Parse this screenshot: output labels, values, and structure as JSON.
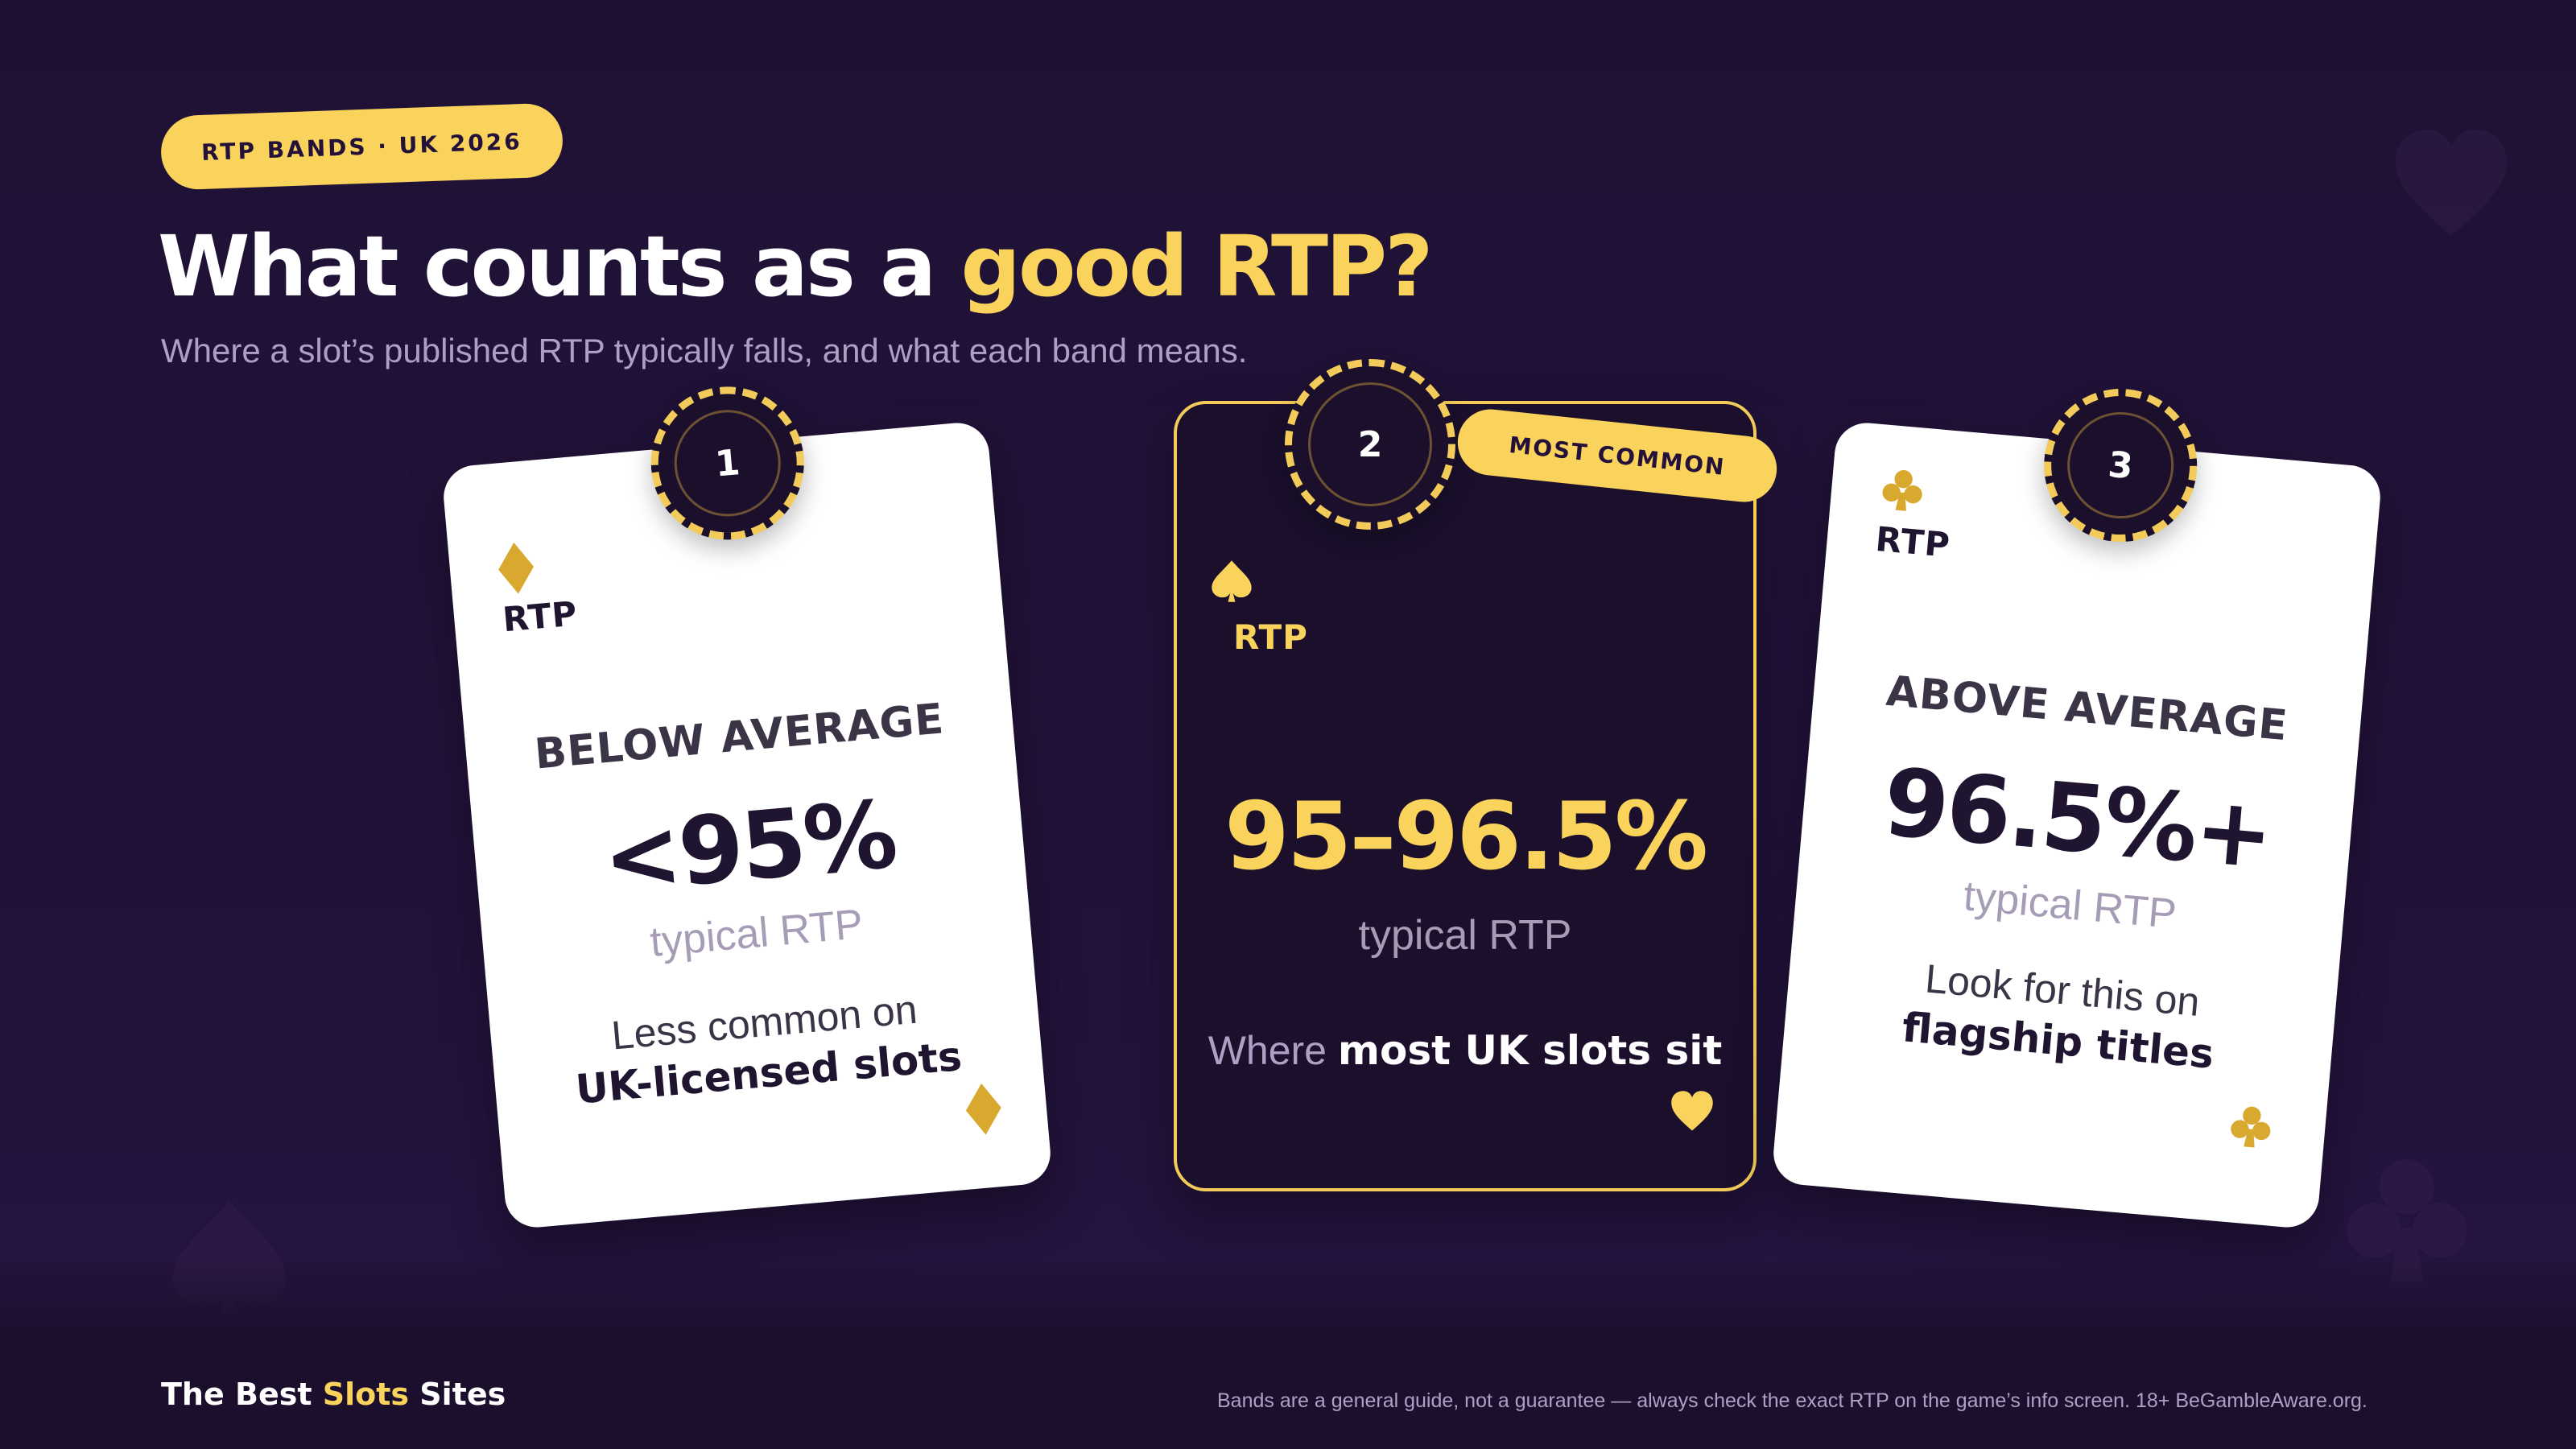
{
  "header": {
    "pill": "RTP BANDS · UK 2026",
    "title_main": "What counts as a ",
    "title_highlight": "good RTP?",
    "subtitle": "Where a slot’s published RTP typically falls, and what each band means."
  },
  "cards": [
    {
      "number": "1",
      "corner_label": "RTP",
      "suit_icon": "diamond-icon",
      "band": "BELOW AVERAGE",
      "value": "<95%",
      "caption": "typical RTP",
      "desc_plain": "Less common on",
      "desc_strong": "UK-licensed slots"
    },
    {
      "number": "2",
      "corner_label": "RTP",
      "suit_icon": "spade-icon",
      "tag": "MOST COMMON",
      "value": "95–96.5%",
      "caption": "typical RTP",
      "desc_plain": "Where ",
      "desc_strong": "most UK slots sit"
    },
    {
      "number": "3",
      "corner_label": "RTP",
      "suit_icon": "club-icon",
      "band": "ABOVE AVERAGE",
      "value": "96.5%+",
      "caption": "typical RTP",
      "desc_plain": "Look for this on",
      "desc_strong": "flagship titles"
    }
  ],
  "footer": {
    "brand_start": "The Best ",
    "brand_highlight": "Slots",
    "brand_end": " Sites",
    "disclaimer": "Bands are a general guide, not a guarantee — always check the exact RTP on the game’s info screen. 18+ BeGambleAware.org."
  },
  "colors": {
    "background": "#22123a",
    "accent": "#f9d35c",
    "card_dark": "#1b0f2c",
    "card_light": "#ffffff",
    "text_dark": "#1f1530",
    "text_muted": "#aea0c4"
  }
}
